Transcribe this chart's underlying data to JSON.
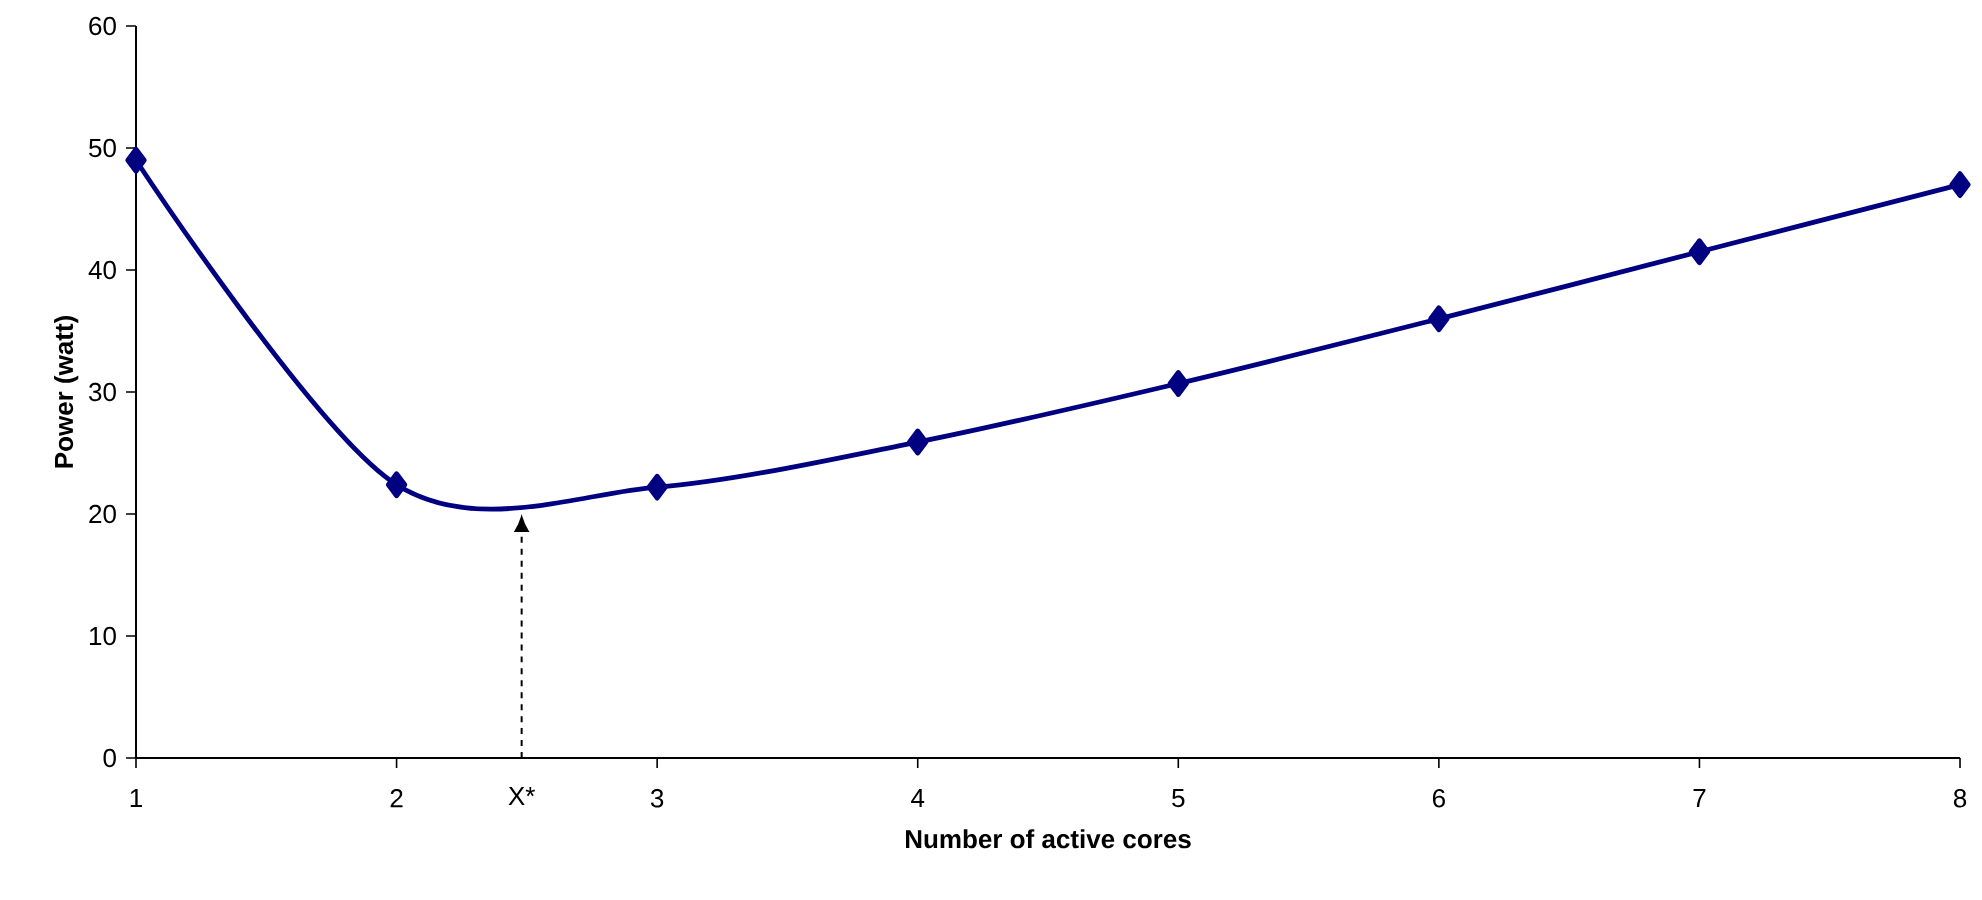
{
  "chart_data": {
    "type": "line",
    "xlabel": "Number of active cores",
    "ylabel": "Power (watt)",
    "x": [
      1,
      2,
      3,
      4,
      5,
      6,
      7,
      8
    ],
    "series": [
      {
        "color": "#000080",
        "values": [
          49.0,
          22.4,
          22.2,
          25.9,
          30.7,
          36.0,
          41.5,
          47.0
        ]
      }
    ],
    "xlim": [
      1,
      8
    ],
    "xticks": [
      1,
      2,
      3,
      4,
      5,
      6,
      7,
      8
    ],
    "ylim": [
      0,
      60
    ],
    "yticks": [
      0,
      10,
      20,
      30,
      40,
      50,
      60
    ],
    "marker": "diamond",
    "line_style": "solid",
    "grid": false,
    "annotations": [
      {
        "text": "X*",
        "x": 2.48,
        "y": 20
      }
    ]
  }
}
